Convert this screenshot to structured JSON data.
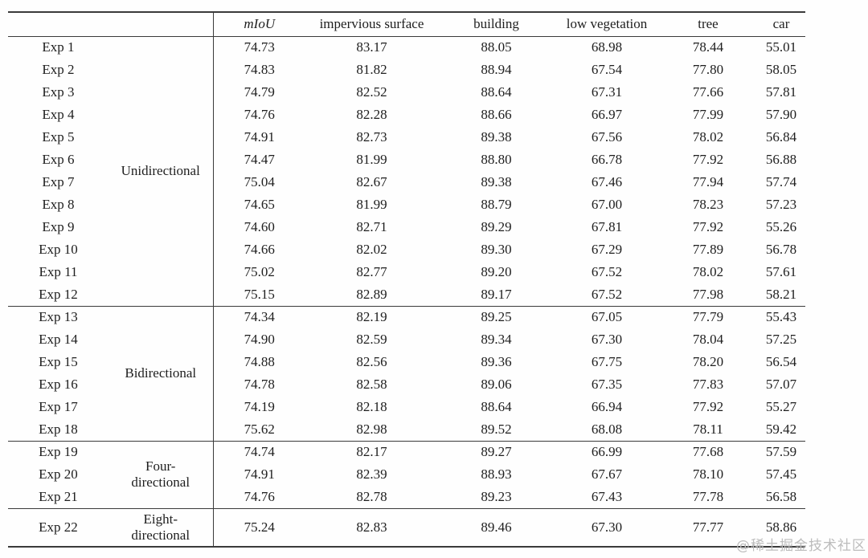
{
  "table": {
    "columns": [
      "mIoU",
      "impervious surface",
      "building",
      "low vegetation",
      "tree",
      "car"
    ],
    "groups": [
      {
        "label": "Unidirectional",
        "rows": [
          {
            "exp": "Exp 1",
            "values": [
              "74.73",
              "83.17",
              "88.05",
              "68.98",
              "78.44",
              "55.01"
            ]
          },
          {
            "exp": "Exp 2",
            "values": [
              "74.83",
              "81.82",
              "88.94",
              "67.54",
              "77.80",
              "58.05"
            ]
          },
          {
            "exp": "Exp 3",
            "values": [
              "74.79",
              "82.52",
              "88.64",
              "67.31",
              "77.66",
              "57.81"
            ]
          },
          {
            "exp": "Exp 4",
            "values": [
              "74.76",
              "82.28",
              "88.66",
              "66.97",
              "77.99",
              "57.90"
            ]
          },
          {
            "exp": "Exp 5",
            "values": [
              "74.91",
              "82.73",
              "89.38",
              "67.56",
              "78.02",
              "56.84"
            ]
          },
          {
            "exp": "Exp 6",
            "values": [
              "74.47",
              "81.99",
              "88.80",
              "66.78",
              "77.92",
              "56.88"
            ]
          },
          {
            "exp": "Exp 7",
            "values": [
              "75.04",
              "82.67",
              "89.38",
              "67.46",
              "77.94",
              "57.74"
            ]
          },
          {
            "exp": "Exp 8",
            "values": [
              "74.65",
              "81.99",
              "88.79",
              "67.00",
              "78.23",
              "57.23"
            ]
          },
          {
            "exp": "Exp 9",
            "values": [
              "74.60",
              "82.71",
              "89.29",
              "67.81",
              "77.92",
              "55.26"
            ]
          },
          {
            "exp": "Exp 10",
            "values": [
              "74.66",
              "82.02",
              "89.30",
              "67.29",
              "77.89",
              "56.78"
            ]
          },
          {
            "exp": "Exp 11",
            "values": [
              "75.02",
              "82.77",
              "89.20",
              "67.52",
              "78.02",
              "57.61"
            ]
          },
          {
            "exp": "Exp 12",
            "values": [
              "75.15",
              "82.89",
              "89.17",
              "67.52",
              "77.98",
              "58.21"
            ]
          }
        ]
      },
      {
        "label": "Bidirectional",
        "rows": [
          {
            "exp": "Exp 13",
            "values": [
              "74.34",
              "82.19",
              "89.25",
              "67.05",
              "77.79",
              "55.43"
            ]
          },
          {
            "exp": "Exp 14",
            "values": [
              "74.90",
              "82.59",
              "89.34",
              "67.30",
              "78.04",
              "57.25"
            ]
          },
          {
            "exp": "Exp 15",
            "values": [
              "74.88",
              "82.56",
              "89.36",
              "67.75",
              "78.20",
              "56.54"
            ]
          },
          {
            "exp": "Exp 16",
            "values": [
              "74.78",
              "82.58",
              "89.06",
              "67.35",
              "77.83",
              "57.07"
            ]
          },
          {
            "exp": "Exp 17",
            "values": [
              "74.19",
              "82.18",
              "88.64",
              "66.94",
              "77.92",
              "55.27"
            ]
          },
          {
            "exp": "Exp 18",
            "values": [
              "75.62",
              "82.98",
              "89.52",
              "68.08",
              "78.11",
              "59.42"
            ]
          }
        ]
      },
      {
        "label": "Four-\ndirectional",
        "rows": [
          {
            "exp": "Exp 19",
            "values": [
              "74.74",
              "82.17",
              "89.27",
              "66.99",
              "77.68",
              "57.59"
            ]
          },
          {
            "exp": "Exp 20",
            "values": [
              "74.91",
              "82.39",
              "88.93",
              "67.67",
              "78.10",
              "57.45"
            ]
          },
          {
            "exp": "Exp 21",
            "values": [
              "74.76",
              "82.78",
              "89.23",
              "67.43",
              "77.78",
              "56.58"
            ]
          }
        ]
      },
      {
        "label": "Eight-\ndirectional",
        "tall": true,
        "rows": [
          {
            "exp": "Exp 22",
            "values": [
              "75.24",
              "82.83",
              "89.46",
              "67.30",
              "77.77",
              "58.86"
            ]
          }
        ]
      }
    ]
  },
  "watermark": "@稀土掘金技术社区"
}
